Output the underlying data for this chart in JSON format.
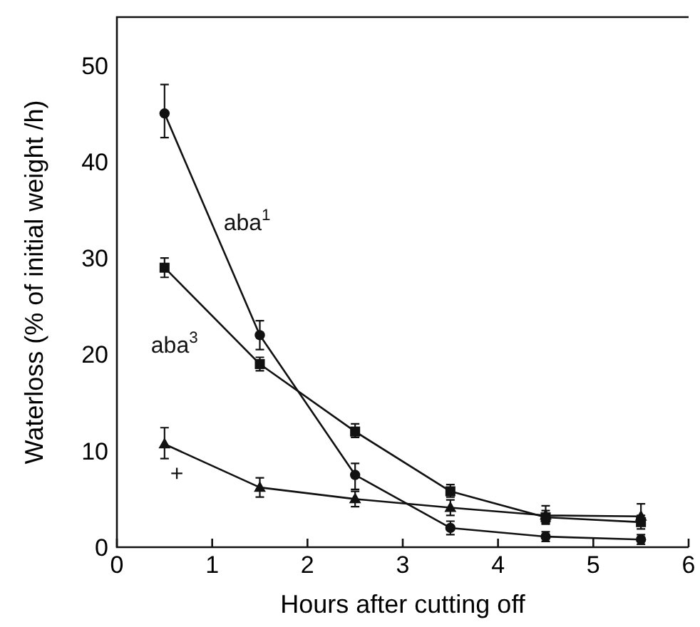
{
  "chart_data": {
    "type": "line",
    "xlabel": "Hours after cutting off",
    "ylabel": "Waterloss (% of initial weight /h)",
    "x": [
      0.5,
      1.5,
      2.5,
      3.5,
      4.5,
      5.5
    ],
    "xlim": [
      0,
      6
    ],
    "xticks": [
      0,
      1,
      2,
      3,
      4,
      5,
      6
    ],
    "ylim": [
      0,
      55
    ],
    "yticks": [
      0,
      10,
      20,
      30,
      40,
      50
    ],
    "grid": false,
    "series": [
      {
        "name": "aba$^{1}$",
        "color": "#111111",
        "marker": "circle",
        "values": [
          45,
          22,
          7.5,
          2,
          1.1,
          0.8
        ],
        "errors": [
          [
            42.5,
            48
          ],
          [
            20.5,
            23.5
          ],
          [
            6,
            8.7
          ],
          [
            1.3,
            2.7
          ],
          [
            0.6,
            1.6
          ],
          [
            0.3,
            1.3
          ]
        ]
      },
      {
        "name": "aba$^{3}$",
        "color": "#111111",
        "marker": "square",
        "values": [
          29,
          19,
          12,
          5.8,
          3.1,
          2.6
        ],
        "errors": [
          [
            28,
            30
          ],
          [
            18.3,
            19.7
          ],
          [
            11.4,
            12.8
          ],
          [
            5.2,
            6.5
          ],
          [
            2.4,
            3.8
          ],
          [
            1.9,
            3.3
          ]
        ]
      },
      {
        "name": "+",
        "color": "#111111",
        "marker": "triangle",
        "values": [
          10.7,
          6.2,
          5,
          4.1,
          3.3,
          3.2
        ],
        "errors": [
          [
            9.2,
            12.4
          ],
          [
            5.2,
            7.2
          ],
          [
            4.2,
            5.8
          ],
          [
            3.3,
            4.9
          ],
          [
            2.5,
            4.3
          ],
          [
            2.3,
            4.5
          ]
        ]
      }
    ]
  }
}
